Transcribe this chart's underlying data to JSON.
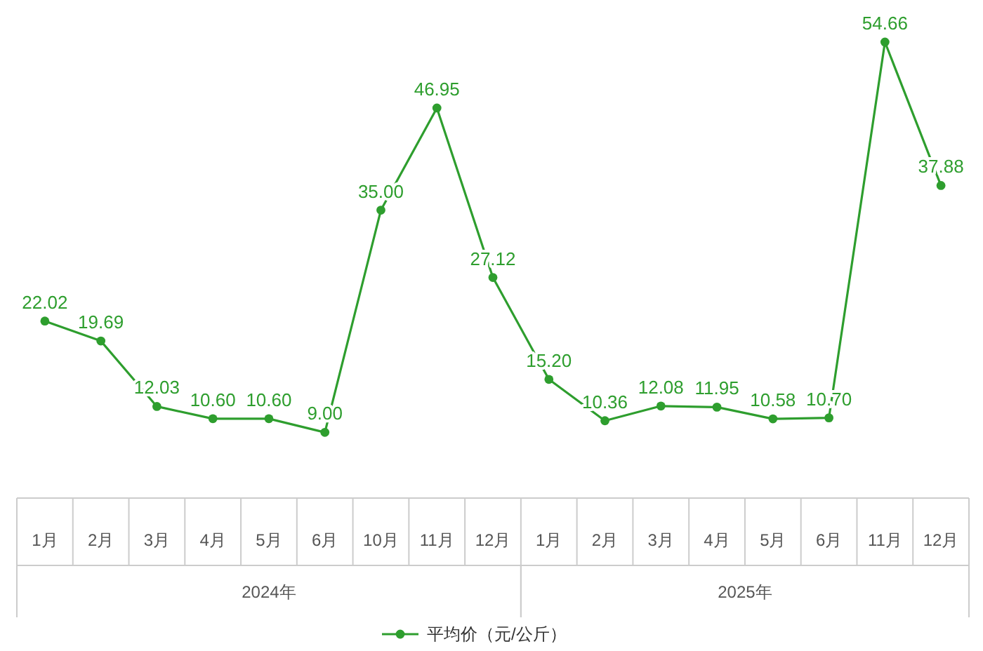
{
  "chart_data": {
    "type": "line",
    "categories": [
      "1月",
      "2月",
      "3月",
      "4月",
      "5月",
      "6月",
      "10月",
      "11月",
      "12月",
      "1月",
      "2月",
      "3月",
      "4月",
      "5月",
      "6月",
      "11月",
      "12月"
    ],
    "series": [
      {
        "name": "平均价（元/公斤）",
        "color": "#2e9e2e",
        "values": [
          22.02,
          19.69,
          12.03,
          10.6,
          10.6,
          9.0,
          35.0,
          46.95,
          27.12,
          15.2,
          10.36,
          12.08,
          11.95,
          10.58,
          10.7,
          54.66,
          37.88
        ],
        "value_labels": [
          "22.02",
          "19.69",
          "12.03",
          "10.60",
          "10.60",
          "9.00",
          "35.00",
          "46.95",
          "27.12",
          "15.20",
          "10.36",
          "12.08",
          "11.95",
          "10.58",
          "10.70",
          "54.66",
          "37.88"
        ]
      }
    ],
    "annotations": [
      "2024年",
      "2025年"
    ],
    "marker": "circle",
    "legend": "bottom",
    "grid": false
  }
}
